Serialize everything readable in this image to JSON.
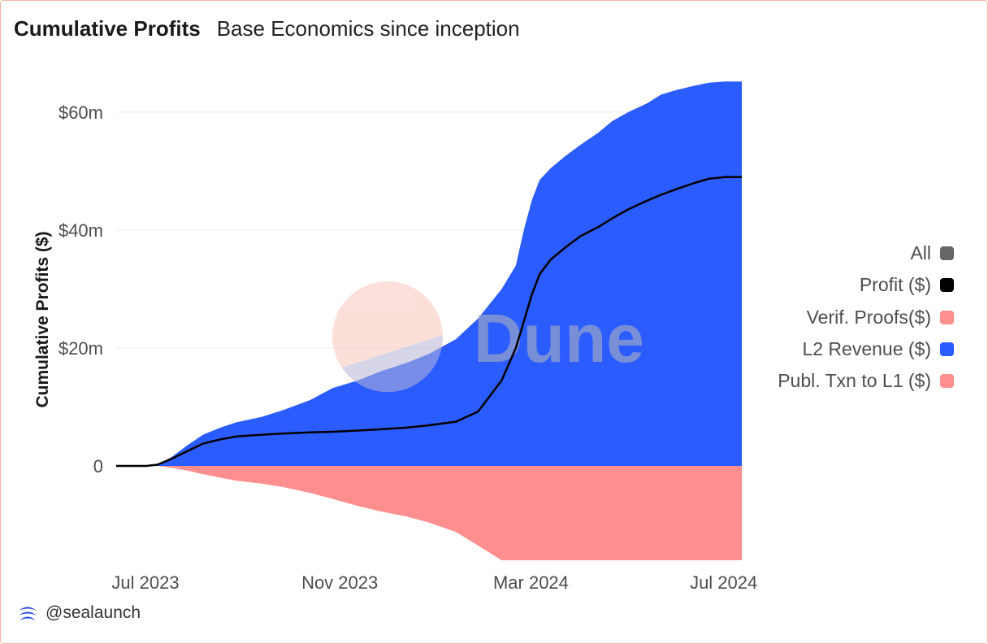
{
  "header": {
    "title": "Cumulative Profits",
    "subtitle": "Base Economics since inception"
  },
  "watermark": {
    "text": "Dune"
  },
  "footer": {
    "handle": "@sealaunch",
    "icon": "sealaunch-logo-icon"
  },
  "legend": [
    {
      "label": "All",
      "color": "#666666"
    },
    {
      "label": "Profit ($)",
      "color": "#000000"
    },
    {
      "label": "Verif. Proofs($)",
      "color": "#ff8f8f"
    },
    {
      "label": "L2 Revenue ($)",
      "color": "#2b5cff"
    },
    {
      "label": "Publ. Txn to L1 ($)",
      "color": "#ff8f8f"
    }
  ],
  "chart_data": {
    "type": "area",
    "title": "Cumulative Profits",
    "subtitle": "Base Economics since inception",
    "xlabel": "",
    "ylabel": "Cumulative Profits ($)",
    "x_ticks": [
      "Jul 2023",
      "Nov 2023",
      "Mar 2024",
      "Jul 2024"
    ],
    "y_ticks": [
      "0",
      "$20m",
      "$40m",
      "$60m"
    ],
    "y_tick_values": [
      0,
      20,
      40,
      60
    ],
    "y_unit": "millions USD",
    "ylim": [
      -16.5,
      67
    ],
    "xlim": [
      "2023-07-01",
      "2024-07-31"
    ],
    "grid": "horizontal",
    "legend_position": "right",
    "x": [
      "2023-07-01",
      "2023-07-10",
      "2023-07-20",
      "2023-07-27",
      "2023-08-05",
      "2023-08-15",
      "2023-08-25",
      "2023-09-05",
      "2023-09-15",
      "2023-10-01",
      "2023-10-15",
      "2023-11-01",
      "2023-11-15",
      "2023-12-01",
      "2023-12-15",
      "2024-01-01",
      "2024-01-15",
      "2024-02-01",
      "2024-02-15",
      "2024-03-01",
      "2024-03-10",
      "2024-03-15",
      "2024-03-20",
      "2024-03-25",
      "2024-04-01",
      "2024-04-10",
      "2024-04-20",
      "2024-05-01",
      "2024-05-10",
      "2024-05-20",
      "2024-06-01",
      "2024-06-10",
      "2024-06-20",
      "2024-07-01",
      "2024-07-10",
      "2024-07-20",
      "2024-07-31"
    ],
    "series": [
      {
        "name": "L2 Revenue ($)",
        "color": "#2b5cff",
        "stack": "positive",
        "values": [
          0,
          0,
          0,
          0.2,
          1.5,
          3.5,
          5.3,
          6.5,
          7.4,
          8.3,
          9.5,
          11.2,
          13.2,
          14.5,
          16.0,
          17.5,
          19.0,
          21.5,
          25.0,
          30.0,
          34.0,
          40.0,
          45.0,
          48.5,
          50.5,
          52.5,
          54.5,
          56.5,
          58.5,
          60.0,
          61.5,
          63.0,
          63.8,
          64.5,
          65.0,
          65.2,
          65.2
        ]
      },
      {
        "name": "Publ. Txn to L1 ($)",
        "color": "#ff8f8f",
        "stack": "negative",
        "values": [
          0,
          0,
          0,
          0,
          -0.3,
          -0.8,
          -1.4,
          -2.0,
          -2.5,
          -3.0,
          -3.6,
          -4.6,
          -5.6,
          -6.8,
          -7.7,
          -8.6,
          -9.6,
          -11.2,
          -13.5,
          -16.0,
          -16.0,
          -16.0,
          -16.0,
          -16.0,
          -16.0,
          -16.0,
          -16.0,
          -16.0,
          -16.0,
          -16.0,
          -16.0,
          -16.0,
          -16.0,
          -16.0,
          -16.0,
          -16.0,
          -16.0
        ]
      },
      {
        "name": "Profit ($)",
        "color": "#000000",
        "type": "line",
        "values": [
          0,
          0,
          0,
          0.2,
          1.2,
          2.5,
          3.8,
          4.5,
          5.0,
          5.3,
          5.5,
          5.7,
          5.8,
          6.0,
          6.2,
          6.5,
          6.9,
          7.5,
          9.2,
          14.5,
          20.0,
          24.5,
          29.0,
          32.5,
          35.0,
          37.0,
          39.0,
          40.5,
          42.0,
          43.5,
          45.0,
          46.0,
          47.0,
          48.0,
          48.7,
          49.0,
          49.0
        ]
      }
    ]
  }
}
